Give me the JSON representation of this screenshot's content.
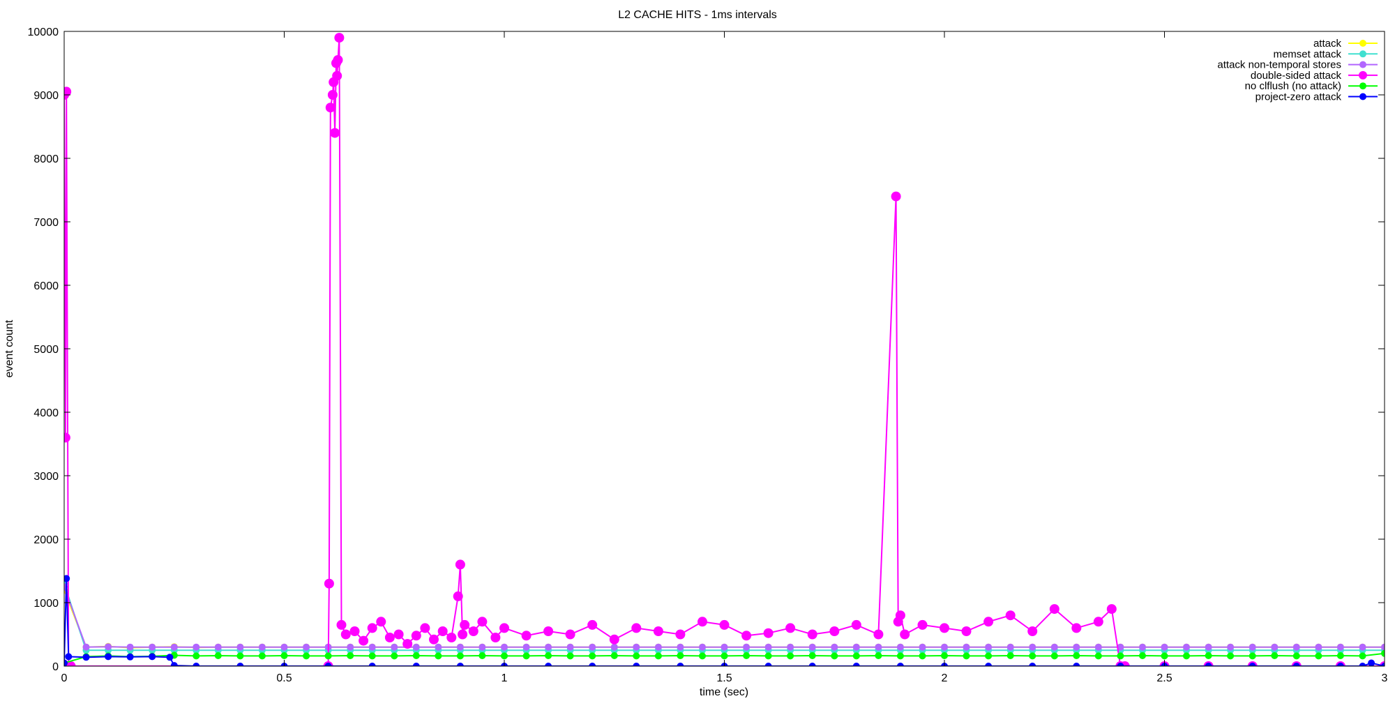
{
  "chart_data": {
    "type": "line",
    "title": "L2 CACHE HITS - 1ms intervals",
    "xlabel": "time (sec)",
    "ylabel": "event count",
    "xlim": [
      0,
      3
    ],
    "ylim": [
      0,
      10000
    ],
    "x_ticks": [
      0,
      0.5,
      1,
      1.5,
      2,
      2.5,
      3
    ],
    "x_tick_labels": [
      "0",
      "0.5",
      "1",
      "1.5",
      "2",
      "2.5",
      "3"
    ],
    "y_ticks": [
      0,
      1000,
      2000,
      3000,
      4000,
      5000,
      6000,
      7000,
      8000,
      9000,
      10000
    ],
    "y_tick_labels": [
      "0",
      "1000",
      "2000",
      "3000",
      "4000",
      "5000",
      "6000",
      "7000",
      "8000",
      "9000",
      "10000"
    ],
    "grid": false,
    "legend_position": "top-right",
    "series": [
      {
        "name": "attack",
        "color": "#ffff00",
        "x": [
          0,
          0.05,
          0.1,
          0.15,
          0.2,
          0.25,
          0.3,
          0.35,
          0.4,
          0.45,
          0.5,
          0.55,
          0.6,
          0.65,
          0.7,
          0.75,
          0.8,
          0.85,
          0.9,
          0.95,
          1.0,
          1.05,
          1.1,
          1.15,
          1.2,
          1.25,
          1.3,
          1.35,
          1.4,
          1.45,
          1.5,
          1.55,
          1.6,
          1.65,
          1.7,
          1.75,
          1.8,
          1.85,
          1.9,
          1.95,
          2.0,
          2.05,
          2.1,
          2.15,
          2.2,
          2.25,
          2.3,
          2.35,
          2.4,
          2.45,
          2.5,
          2.55,
          2.6,
          2.65,
          2.7,
          2.75,
          2.8,
          2.85,
          2.9,
          2.95,
          3.0
        ],
        "y": [
          1200,
          300,
          310,
          290,
          300,
          305,
          295,
          300,
          300,
          300,
          300,
          300,
          300,
          300,
          300,
          300,
          300,
          300,
          300,
          300,
          300,
          300,
          300,
          300,
          300,
          300,
          300,
          300,
          300,
          300,
          300,
          300,
          300,
          300,
          300,
          300,
          300,
          300,
          300,
          300,
          300,
          300,
          300,
          300,
          300,
          300,
          300,
          300,
          300,
          300,
          300,
          300,
          300,
          300,
          300,
          300,
          300,
          300,
          300,
          300,
          300
        ]
      },
      {
        "name": "memset attack",
        "color": "#40e0d0",
        "x": [
          0,
          0.05,
          0.1,
          0.15,
          0.2,
          0.25,
          0.3,
          0.35,
          0.4,
          0.45,
          0.5,
          0.55,
          0.6,
          0.65,
          0.7,
          0.75,
          0.8,
          0.85,
          0.9,
          0.95,
          1.0,
          1.05,
          1.1,
          1.15,
          1.2,
          1.25,
          1.3,
          1.35,
          1.4,
          1.45,
          1.5,
          1.55,
          1.6,
          1.65,
          1.7,
          1.75,
          1.8,
          1.85,
          1.9,
          1.95,
          2.0,
          2.05,
          2.1,
          2.15,
          2.2,
          2.25,
          2.3,
          2.35,
          2.4,
          2.45,
          2.5,
          2.55,
          2.6,
          2.65,
          2.7,
          2.75,
          2.8,
          2.85,
          2.9,
          2.95,
          3.0
        ],
        "y": [
          1300,
          250,
          250,
          250,
          250,
          250,
          250,
          250,
          250,
          250,
          250,
          250,
          250,
          250,
          250,
          250,
          250,
          250,
          250,
          250,
          250,
          250,
          250,
          250,
          250,
          250,
          250,
          250,
          250,
          250,
          250,
          250,
          250,
          250,
          250,
          250,
          250,
          250,
          250,
          250,
          250,
          250,
          250,
          250,
          250,
          250,
          250,
          250,
          250,
          250,
          250,
          250,
          250,
          250,
          250,
          250,
          250,
          250,
          250,
          250,
          250
        ]
      },
      {
        "name": "attack non-temporal stores",
        "color": "#b266ff",
        "x": [
          0,
          0.05,
          0.1,
          0.15,
          0.2,
          0.25,
          0.3,
          0.35,
          0.4,
          0.45,
          0.5,
          0.55,
          0.6,
          0.65,
          0.7,
          0.75,
          0.8,
          0.85,
          0.9,
          0.95,
          1.0,
          1.05,
          1.1,
          1.15,
          1.2,
          1.25,
          1.3,
          1.35,
          1.4,
          1.45,
          1.5,
          1.55,
          1.6,
          1.65,
          1.7,
          1.75,
          1.8,
          1.85,
          1.9,
          1.95,
          2.0,
          2.05,
          2.1,
          2.15,
          2.2,
          2.25,
          2.3,
          2.35,
          2.4,
          2.45,
          2.5,
          2.55,
          2.6,
          2.65,
          2.7,
          2.75,
          2.8,
          2.85,
          2.9,
          2.95,
          3.0
        ],
        "y": [
          1250,
          300,
          305,
          300,
          300,
          300,
          300,
          300,
          300,
          300,
          300,
          300,
          300,
          300,
          300,
          300,
          300,
          300,
          300,
          300,
          300,
          300,
          300,
          300,
          300,
          300,
          300,
          300,
          300,
          300,
          300,
          300,
          300,
          300,
          300,
          300,
          300,
          300,
          300,
          300,
          300,
          300,
          300,
          300,
          300,
          300,
          300,
          300,
          300,
          300,
          300,
          300,
          300,
          300,
          300,
          300,
          300,
          300,
          300,
          300,
          300
        ]
      },
      {
        "name": "double-sided attack",
        "color": "#ff00ff",
        "x": [
          0,
          0.003,
          0.005,
          0.01,
          0.015,
          0.6,
          0.602,
          0.605,
          0.61,
          0.612,
          0.615,
          0.618,
          0.62,
          0.622,
          0.625,
          0.63,
          0.64,
          0.66,
          0.68,
          0.7,
          0.72,
          0.74,
          0.76,
          0.78,
          0.8,
          0.82,
          0.84,
          0.86,
          0.88,
          0.895,
          0.9,
          0.905,
          0.91,
          0.93,
          0.95,
          0.98,
          1.0,
          1.05,
          1.1,
          1.15,
          1.2,
          1.25,
          1.3,
          1.35,
          1.4,
          1.45,
          1.5,
          1.55,
          1.6,
          1.65,
          1.7,
          1.75,
          1.8,
          1.85,
          1.89,
          1.895,
          1.9,
          1.91,
          1.95,
          2.0,
          2.05,
          2.1,
          2.15,
          2.2,
          2.25,
          2.3,
          2.35,
          2.38,
          2.4,
          2.41,
          2.5,
          2.6,
          2.7,
          2.8,
          2.9,
          3.0
        ],
        "y": [
          9000,
          3600,
          9050,
          0,
          0,
          0,
          1300,
          8800,
          9000,
          9200,
          8400,
          9500,
          9300,
          9550,
          9900,
          650,
          500,
          550,
          400,
          600,
          700,
          450,
          500,
          350,
          480,
          600,
          420,
          550,
          450,
          1100,
          1600,
          500,
          650,
          550,
          700,
          450,
          600,
          480,
          550,
          500,
          650,
          420,
          600,
          550,
          500,
          700,
          650,
          480,
          520,
          600,
          500,
          550,
          650,
          500,
          7400,
          700,
          800,
          500,
          650,
          600,
          550,
          700,
          800,
          550,
          900,
          600,
          700,
          900,
          0,
          0,
          0,
          0,
          0,
          0,
          0,
          0
        ]
      },
      {
        "name": "no clflush (no attack)",
        "color": "#00ff00",
        "x": [
          0,
          0.05,
          0.1,
          0.15,
          0.2,
          0.25,
          0.3,
          0.35,
          0.4,
          0.45,
          0.5,
          0.55,
          0.6,
          0.65,
          0.7,
          0.75,
          0.8,
          0.85,
          0.9,
          0.95,
          1.0,
          1.05,
          1.1,
          1.15,
          1.2,
          1.25,
          1.3,
          1.35,
          1.4,
          1.45,
          1.5,
          1.55,
          1.6,
          1.65,
          1.7,
          1.75,
          1.8,
          1.85,
          1.9,
          1.95,
          2.0,
          2.05,
          2.1,
          2.15,
          2.2,
          2.25,
          2.3,
          2.35,
          2.4,
          2.45,
          2.5,
          2.55,
          2.6,
          2.65,
          2.7,
          2.75,
          2.8,
          2.85,
          2.9,
          2.95,
          3.0
        ],
        "y": [
          50,
          150,
          160,
          150,
          155,
          170,
          160,
          165,
          160,
          160,
          165,
          160,
          160,
          165,
          160,
          160,
          165,
          160,
          160,
          165,
          160,
          160,
          165,
          160,
          160,
          165,
          160,
          160,
          165,
          160,
          160,
          165,
          160,
          160,
          165,
          160,
          160,
          165,
          160,
          160,
          165,
          160,
          160,
          165,
          160,
          160,
          165,
          160,
          160,
          165,
          160,
          160,
          165,
          160,
          160,
          165,
          160,
          160,
          165,
          160,
          200
        ]
      },
      {
        "name": "project-zero attack",
        "color": "#0000ff",
        "x": [
          0,
          0.005,
          0.01,
          0.05,
          0.1,
          0.15,
          0.2,
          0.24,
          0.25,
          0.3,
          0.4,
          0.5,
          0.6,
          0.7,
          0.8,
          0.9,
          1.0,
          1.1,
          1.2,
          1.3,
          1.4,
          1.5,
          1.6,
          1.7,
          1.8,
          1.9,
          2.0,
          2.1,
          2.2,
          2.3,
          2.4,
          2.5,
          2.6,
          2.7,
          2.8,
          2.9,
          2.95,
          2.97,
          3.0
        ],
        "y": [
          50,
          1380,
          150,
          140,
          150,
          145,
          150,
          140,
          10,
          0,
          0,
          0,
          0,
          0,
          0,
          0,
          0,
          0,
          0,
          0,
          0,
          0,
          0,
          0,
          0,
          0,
          0,
          0,
          0,
          0,
          0,
          0,
          0,
          0,
          0,
          0,
          0,
          50,
          0
        ]
      }
    ]
  }
}
